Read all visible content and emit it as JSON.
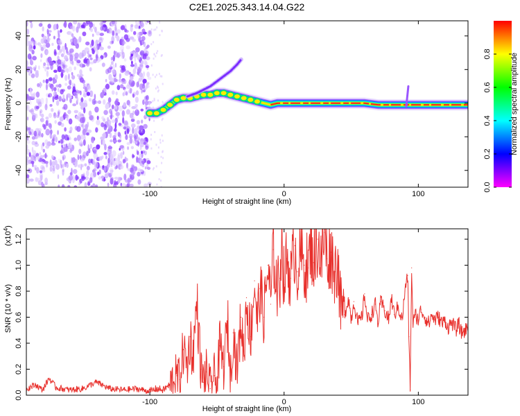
{
  "chart_data": [
    {
      "type": "heatmap",
      "title": "C2E1.2025.343.14.04.G22",
      "xlabel": "Height of straight line (km)",
      "ylabel": "Frequency (Hz)",
      "xlim": [
        -192,
        137
      ],
      "ylim": [
        -50,
        49
      ],
      "xticks": [
        -100,
        0,
        100
      ],
      "yticks": [
        -40,
        -20,
        0,
        20,
        40
      ],
      "noise_region_x": [
        -192,
        -100
      ],
      "signal_ridge": {
        "x": [
          -100,
          -95,
          -90,
          -85,
          -80,
          -75,
          -70,
          -65,
          -60,
          -55,
          -50,
          -45,
          -40,
          -35,
          -30,
          -25,
          -20,
          -15,
          -10,
          -5,
          0,
          10,
          20,
          30,
          40,
          50,
          60,
          70,
          80,
          88,
          90,
          95,
          100,
          110,
          120,
          130,
          137
        ],
        "freq_hz": [
          -6,
          -6,
          -4,
          -1,
          2,
          3,
          3,
          4,
          5,
          5,
          6,
          6,
          5,
          4,
          3,
          2,
          1,
          0,
          -1,
          0,
          0,
          0,
          0,
          0,
          0,
          0,
          0,
          -1,
          -1,
          -1,
          -1,
          -1,
          -1,
          -1,
          -1,
          -1,
          -1
        ]
      },
      "secondary_branch": {
        "x": [
          -72,
          -65,
          -60,
          -55,
          -50,
          -45,
          -40,
          -35,
          -32
        ],
        "freq_hz": [
          4,
          6,
          8,
          10,
          13,
          16,
          19,
          23,
          26
        ]
      },
      "spike_feature": {
        "x": 91,
        "freq_range_hz": [
          -2,
          10
        ]
      },
      "colorbar": {
        "label": "Normalized spectral amplitude",
        "range": [
          0,
          1
        ],
        "ticks": [
          "0.0",
          "0.2",
          "0.4",
          "0.6",
          "0.8"
        ],
        "colormap": [
          "#ff00ff",
          "#8000ff",
          "#0000ff",
          "#0080ff",
          "#00ffff",
          "#00ff80",
          "#00ff00",
          "#80ff00",
          "#ffff00",
          "#ff8000",
          "#ff0000"
        ]
      }
    },
    {
      "type": "line",
      "xlabel": "Height of straight line (km)",
      "ylabel": "SNR (10 * v/v)",
      "y_multiplier_label": "(x10",
      "y_multiplier_exp": "4",
      "y_multiplier_close": ")",
      "xlim": [
        -192,
        137
      ],
      "ylim": [
        0.0,
        1.28
      ],
      "xticks": [
        -100,
        0,
        100
      ],
      "yticks": [
        "0.0",
        "0.2",
        "0.4",
        "0.6",
        "0.8",
        "1.0",
        "1.2"
      ],
      "line_color": "#e8302c",
      "series": [
        {
          "name": "SNR",
          "x": [
            -192,
            -185,
            -180,
            -175,
            -170,
            -165,
            -160,
            -150,
            -140,
            -130,
            -120,
            -110,
            -100,
            -95,
            -90,
            -85,
            -80,
            -78,
            -75,
            -72,
            -70,
            -68,
            -65,
            -62,
            -60,
            -58,
            -55,
            -52,
            -50,
            -48,
            -45,
            -42,
            -40,
            -38,
            -35,
            -32,
            -30,
            -28,
            -25,
            -22,
            -20,
            -18,
            -15,
            -12,
            -10,
            -8,
            -5,
            -3,
            -2,
            0,
            2,
            5,
            8,
            10,
            12,
            15,
            18,
            20,
            22,
            25,
            28,
            30,
            32,
            35,
            38,
            40,
            42,
            45,
            48,
            50,
            52,
            55,
            58,
            60,
            62,
            65,
            68,
            70,
            72,
            75,
            78,
            80,
            82,
            85,
            88,
            90,
            92,
            93,
            94,
            95,
            96,
            98,
            100,
            102,
            105,
            108,
            110,
            112,
            115,
            118,
            120,
            122,
            125,
            128,
            130,
            132,
            135,
            137
          ],
          "values": [
            0.05,
            0.08,
            0.04,
            0.13,
            0.06,
            0.05,
            0.04,
            0.05,
            0.1,
            0.05,
            0.04,
            0.05,
            0.03,
            0.05,
            0.04,
            0.08,
            0.15,
            0.12,
            0.35,
            0.22,
            0.45,
            0.28,
            0.72,
            0.2,
            0.1,
            0.18,
            0.05,
            0.15,
            0.06,
            0.38,
            0.22,
            0.55,
            0.12,
            0.48,
            0.2,
            0.6,
            0.3,
            0.75,
            0.45,
            0.88,
            0.55,
            0.82,
            0.6,
            1.0,
            0.7,
            1.12,
            0.8,
            0.9,
            1.28,
            0.85,
            1.05,
            0.9,
            1.15,
            0.95,
            1.08,
            1.0,
            0.98,
            1.18,
            1.02,
            1.2,
            1.0,
            1.25,
            1.05,
            1.1,
            0.95,
            1.05,
            0.68,
            0.62,
            0.75,
            0.58,
            0.72,
            0.55,
            0.6,
            0.78,
            0.58,
            0.62,
            0.7,
            0.55,
            0.72,
            0.65,
            0.58,
            0.75,
            0.62,
            0.68,
            0.58,
            0.8,
            0.92,
            0.45,
            0.04,
            0.98,
            0.55,
            0.62,
            0.58,
            0.66,
            0.6,
            0.55,
            0.62,
            0.58,
            0.6,
            0.55,
            0.58,
            0.52,
            0.56,
            0.5,
            0.55,
            0.48,
            0.5,
            0.52
          ]
        }
      ]
    }
  ]
}
